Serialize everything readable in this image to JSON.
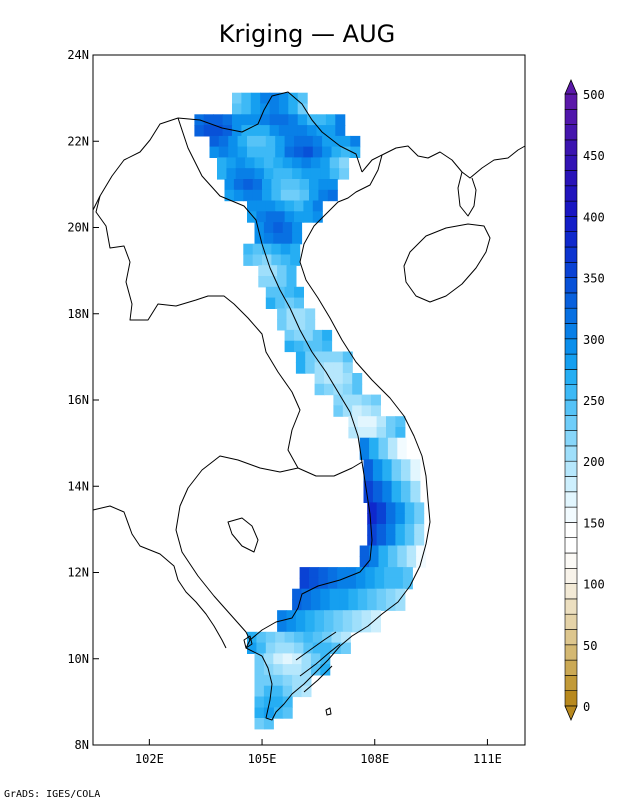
{
  "title": "Kriging — AUG",
  "footer": "GrADS: IGES/COLA",
  "map": {
    "lon_range": [
      100.5,
      112.0
    ],
    "lat_range": [
      8.0,
      24.0
    ],
    "x_ticks": [
      {
        "value": 102,
        "label": "102E"
      },
      {
        "value": 105,
        "label": "105E"
      },
      {
        "value": 108,
        "label": "108E"
      },
      {
        "value": 111,
        "label": "111E"
      }
    ],
    "y_ticks": [
      {
        "value": 8,
        "label": "8N"
      },
      {
        "value": 10,
        "label": "10N"
      },
      {
        "value": 12,
        "label": "12N"
      },
      {
        "value": 14,
        "label": "14N"
      },
      {
        "value": 16,
        "label": "16N"
      },
      {
        "value": 18,
        "label": "18N"
      },
      {
        "value": 20,
        "label": "20N"
      },
      {
        "value": 22,
        "label": "22N"
      },
      {
        "value": 24,
        "label": "24N"
      }
    ]
  },
  "colorbar": {
    "min": 0,
    "max": 500,
    "step": 12.5,
    "labels": [
      "0",
      "50",
      "100",
      "150",
      "200",
      "250",
      "300",
      "350",
      "400",
      "450",
      "500"
    ],
    "colors": [
      "#b8891e",
      "#c29a38",
      "#cba955",
      "#d4b872",
      "#ddc68e",
      "#e5d3a8",
      "#ecdfc0",
      "#f3ead6",
      "#f8f3ea",
      "#fcfaf6",
      "#ffffff",
      "#ffffff",
      "#f2fbff",
      "#e2f6fe",
      "#cdeffd",
      "#b6e7fc",
      "#9fdffb",
      "#87d6fa",
      "#6fcdf9",
      "#56c3f7",
      "#3db9f6",
      "#26aef3",
      "#159ff0",
      "#0b8fec",
      "#087fe7",
      "#0870e2",
      "#0860dd",
      "#0851d8",
      "#0a42d4",
      "#0c34d0",
      "#0f28cc",
      "#131ec8",
      "#1916c2",
      "#2114bd",
      "#2913b8",
      "#3213b4",
      "#3b14b0",
      "#4515ad",
      "#5016ab",
      "#5b18a9"
    ],
    "arrow_low": "#b8891e",
    "arrow_high": "#5b18a9"
  }
}
